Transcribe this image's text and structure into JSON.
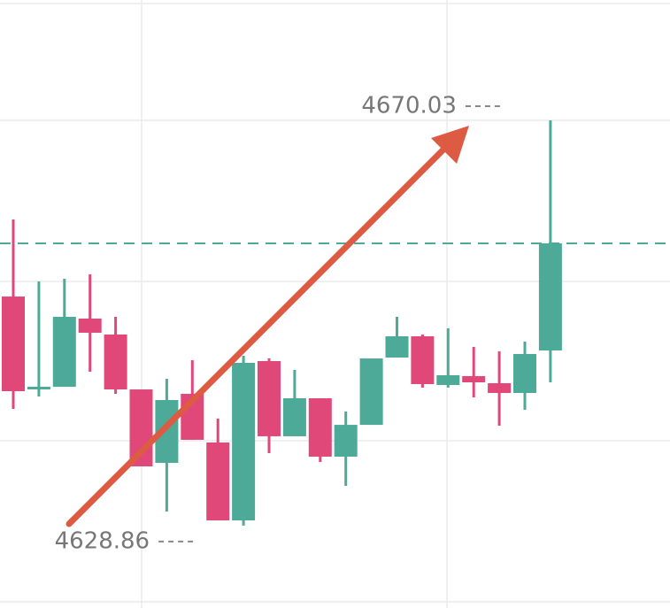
{
  "chart_data": {
    "type": "candlestick",
    "open": [
      4652.13,
      4642.69,
      4642.96,
      4649.89,
      4648.27,
      4642.69,
      4635.23,
      4642.24,
      4637.3,
      4629.38,
      4645.57,
      4637.93,
      4641.79,
      4635.86,
      4639.09,
      4645.93,
      4648.09,
      4643.14,
      4644.04,
      4643.32,
      4642.33,
      4646.65
    ],
    "high": [
      4659.96,
      4653.66,
      4653.93,
      4654.38,
      4650.07,
      4642.69,
      4643.77,
      4645.66,
      4639.72,
      4646.11,
      4645.84,
      4644.67,
      4641.79,
      4640.44,
      4645.84,
      4650.07,
      4648.27,
      4648.9,
      4647.01,
      4646.56,
      4647.55,
      4670.03
    ],
    "low": [
      4640.71,
      4641.97,
      4642.96,
      4644.49,
      4642.24,
      4634.87,
      4630.28,
      4637.57,
      4629.38,
      4628.86,
      4636.22,
      4637.93,
      4635.32,
      4632.89,
      4639.09,
      4645.93,
      4642.87,
      4642.87,
      4641.88,
      4639.0,
      4640.62,
      4643.41
    ],
    "close": [
      4642.51,
      4642.96,
      4650.07,
      4648.45,
      4642.69,
      4634.87,
      4641.61,
      4637.57,
      4629.38,
      4645.39,
      4637.93,
      4641.79,
      4635.86,
      4639.09,
      4645.84,
      4648.09,
      4643.23,
      4644.13,
      4643.41,
      4642.33,
      4646.29,
      4657.53
    ],
    "up_color": "#4daa98",
    "down_color": "#e0487a",
    "ylim": [
      4620.48,
      4682.26
    ],
    "annotations": [
      {
        "label": "4670.03",
        "value": 4670.03
      },
      {
        "label": "4628.86",
        "value": 4628.86
      }
    ]
  }
}
